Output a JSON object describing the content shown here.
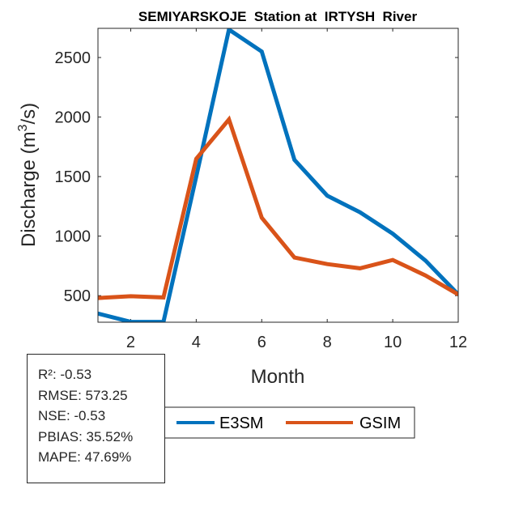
{
  "chart_data": {
    "type": "line",
    "title": "SEMIYARSKOJE  Station at  IRTYSH  River",
    "xlabel": "Month",
    "ylabel": "Discharge (m",
    "ylabel_sup": "3",
    "ylabel_tail": "/s)",
    "xlim": [
      1,
      12
    ],
    "ylim": [
      277,
      2745
    ],
    "x_ticks": [
      2,
      4,
      6,
      8,
      10,
      12
    ],
    "y_ticks": [
      500,
      1000,
      1500,
      2000,
      2500
    ],
    "x": [
      1,
      2,
      3,
      4,
      5,
      6,
      7,
      8,
      9,
      10,
      11,
      12
    ],
    "series": [
      {
        "name": "E3SM",
        "color": "#0072BD",
        "values": [
          350,
          280,
          280,
          1500,
          2735,
          2550,
          1640,
          1340,
          1200,
          1020,
          795,
          510
        ]
      },
      {
        "name": "GSIM",
        "color": "#D95319",
        "values": [
          480,
          495,
          485,
          1650,
          1980,
          1155,
          820,
          765,
          730,
          800,
          670,
          510
        ]
      }
    ],
    "legend_placement": "bottom-center"
  },
  "stats": [
    "R²: -0.53",
    "RMSE: 573.25",
    "NSE: -0.53",
    "PBIAS: 35.52%",
    "MAPE: 47.69%"
  ]
}
